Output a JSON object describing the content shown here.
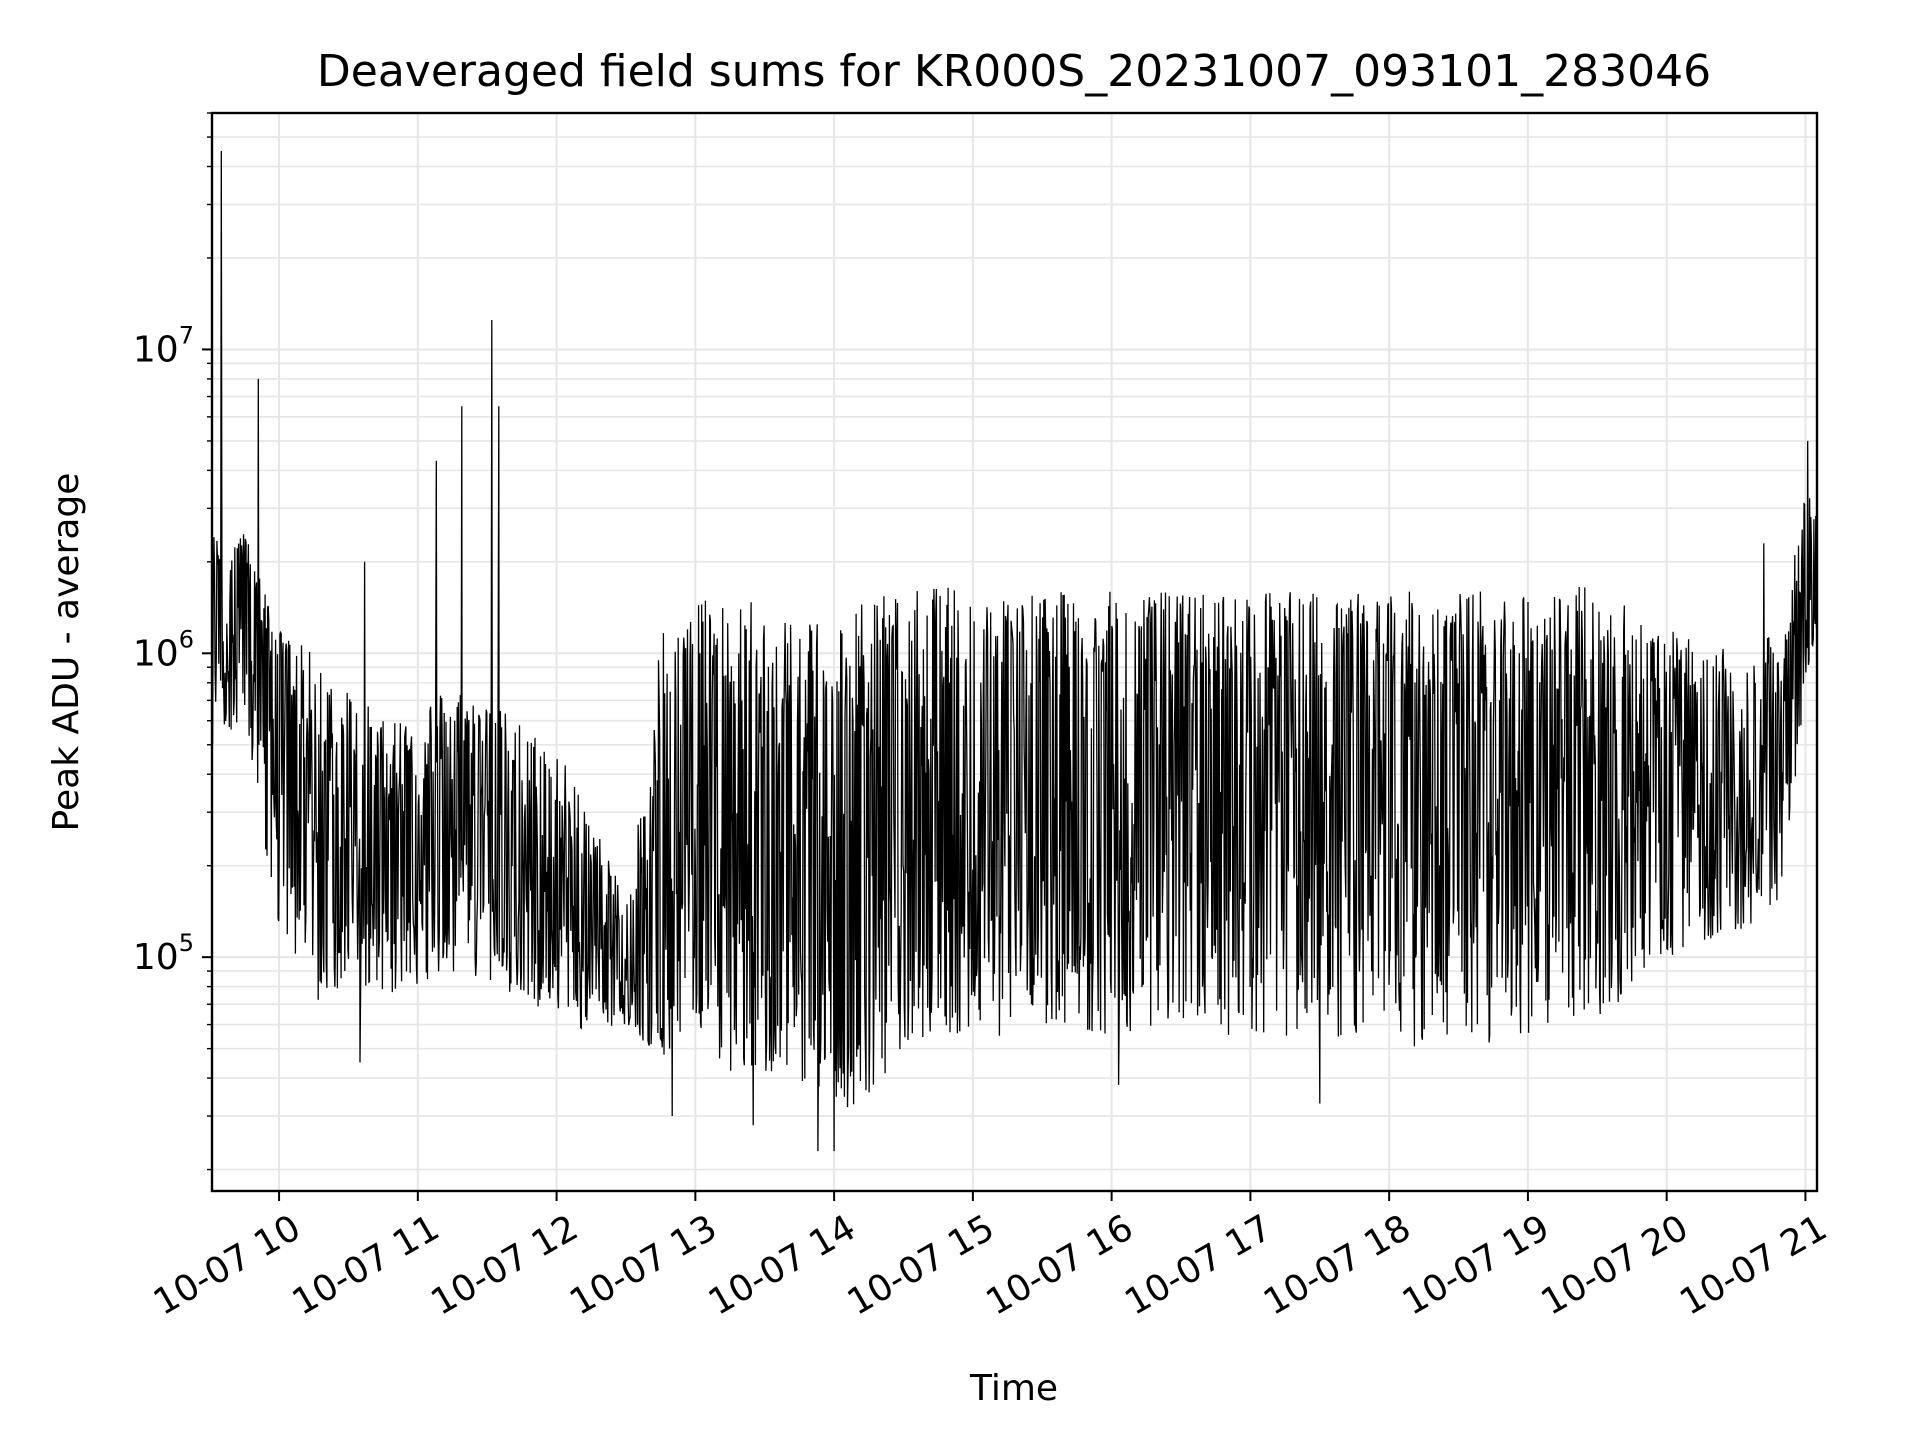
{
  "chart_data": {
    "type": "line",
    "title": "Deaveraged field sums for KR000S_20231007_093101_283046",
    "xlabel": "Time",
    "ylabel": "Peak ADU - average",
    "yscale": "log",
    "ylim": [
      17000,
      60000000
    ],
    "xlim": [
      "2023-10-07 09:31",
      "2023-10-07 21:05"
    ],
    "grid": true,
    "line_color": "#000000",
    "x_ticks": [
      {
        "x": "2023-10-07 10:00",
        "label": "10-07 10"
      },
      {
        "x": "2023-10-07 11:00",
        "label": "10-07 11"
      },
      {
        "x": "2023-10-07 12:00",
        "label": "10-07 12"
      },
      {
        "x": "2023-10-07 13:00",
        "label": "10-07 13"
      },
      {
        "x": "2023-10-07 14:00",
        "label": "10-07 14"
      },
      {
        "x": "2023-10-07 15:00",
        "label": "10-07 15"
      },
      {
        "x": "2023-10-07 16:00",
        "label": "10-07 16"
      },
      {
        "x": "2023-10-07 17:00",
        "label": "10-07 17"
      },
      {
        "x": "2023-10-07 18:00",
        "label": "10-07 18"
      },
      {
        "x": "2023-10-07 19:00",
        "label": "10-07 19"
      },
      {
        "x": "2023-10-07 20:00",
        "label": "10-07 20"
      },
      {
        "x": "2023-10-07 21:00",
        "label": "10-07 21"
      }
    ],
    "y_ticks": [
      {
        "y": 100000,
        "base": "10",
        "exp": "5"
      },
      {
        "y": 1000000,
        "base": "10",
        "exp": "6"
      },
      {
        "y": 10000000,
        "base": "10",
        "exp": "7"
      }
    ],
    "envelope_series": {
      "name": "",
      "x": [
        "2023-10-07 09:31",
        "2023-10-07 09:45",
        "2023-10-07 10:00",
        "2023-10-07 10:15",
        "2023-10-07 10:30",
        "2023-10-07 10:45",
        "2023-10-07 11:00",
        "2023-10-07 11:15",
        "2023-10-07 11:30",
        "2023-10-07 11:45",
        "2023-10-07 12:00",
        "2023-10-07 12:15",
        "2023-10-07 12:30",
        "2023-10-07 12:45",
        "2023-10-07 13:00",
        "2023-10-07 13:15",
        "2023-10-07 13:30",
        "2023-10-07 13:45",
        "2023-10-07 14:00",
        "2023-10-07 14:15",
        "2023-10-07 14:30",
        "2023-10-07 14:45",
        "2023-10-07 15:00",
        "2023-10-07 15:30",
        "2023-10-07 16:00",
        "2023-10-07 16:30",
        "2023-10-07 17:00",
        "2023-10-07 17:30",
        "2023-10-07 18:00",
        "2023-10-07 18:30",
        "2023-10-07 19:00",
        "2023-10-07 19:30",
        "2023-10-07 20:00",
        "2023-10-07 20:30",
        "2023-10-07 20:50",
        "2023-10-07 21:00",
        "2023-10-07 21:05"
      ],
      "low": [
        500000,
        600000,
        120000,
        70000,
        80000,
        75000,
        80000,
        90000,
        80000,
        70000,
        65000,
        55000,
        60000,
        45000,
        60000,
        40000,
        40000,
        40000,
        30000,
        35000,
        45000,
        60000,
        50000,
        60000,
        55000,
        55000,
        55000,
        55000,
        50000,
        50000,
        55000,
        60000,
        100000,
        120000,
        150000,
        800000,
        1200000
      ],
      "mid": [
        1500000,
        1800000,
        700000,
        350000,
        250000,
        200000,
        250000,
        300000,
        250000,
        150000,
        150000,
        100000,
        80000,
        70000,
        200000,
        150000,
        180000,
        120000,
        150000,
        200000,
        250000,
        300000,
        400000,
        450000,
        450000,
        450000,
        450000,
        450000,
        500000,
        500000,
        500000,
        450000,
        400000,
        350000,
        500000,
        1500000,
        2000000
      ],
      "high": [
        2500000,
        2500000,
        1200000,
        1000000,
        800000,
        600000,
        700000,
        800000,
        700000,
        600000,
        500000,
        300000,
        150000,
        1500000,
        1500000,
        1500000,
        1500000,
        1500000,
        1400000,
        1500000,
        1600000,
        1700000,
        1600000,
        1600000,
        1600000,
        1600000,
        1600000,
        1600000,
        1600000,
        1600000,
        1600000,
        1700000,
        1200000,
        1000000,
        1200000,
        3500000,
        3000000
      ]
    },
    "spikes": [
      {
        "x": "2023-10-07 09:35",
        "y": 45000000
      },
      {
        "x": "2023-10-07 09:51",
        "y": 8000000
      },
      {
        "x": "2023-10-07 10:37",
        "y": 2000000
      },
      {
        "x": "2023-10-07 11:08",
        "y": 4300000
      },
      {
        "x": "2023-10-07 11:19",
        "y": 6500000
      },
      {
        "x": "2023-10-07 11:32",
        "y": 12500000
      },
      {
        "x": "2023-10-07 11:35",
        "y": 6500000
      },
      {
        "x": "2023-10-07 20:42",
        "y": 2300000
      },
      {
        "x": "2023-10-07 21:01",
        "y": 5000000
      }
    ],
    "dips": [
      {
        "x": "2023-10-07 10:35",
        "y": 45000
      },
      {
        "x": "2023-10-07 12:50",
        "y": 30000
      },
      {
        "x": "2023-10-07 13:25",
        "y": 28000
      },
      {
        "x": "2023-10-07 13:53",
        "y": 23000
      },
      {
        "x": "2023-10-07 14:00",
        "y": 23000
      },
      {
        "x": "2023-10-07 16:03",
        "y": 38000
      },
      {
        "x": "2023-10-07 17:30",
        "y": 33000
      }
    ]
  }
}
